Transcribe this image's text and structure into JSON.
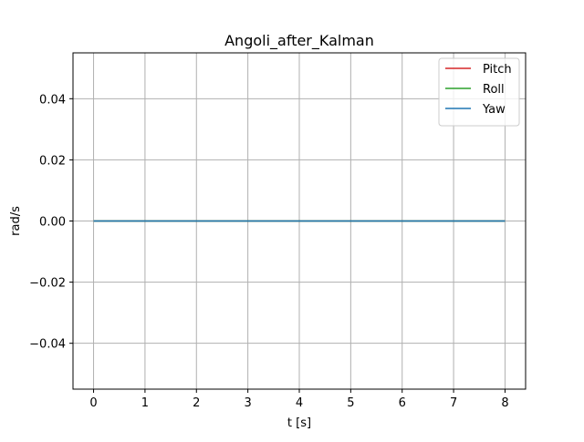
{
  "chart_data": {
    "type": "line",
    "title": "Angoli_after_Kalman",
    "xlabel": "t [s]",
    "ylabel": "rad/s",
    "xlim": [
      -0.4,
      8.4
    ],
    "ylim": [
      -0.055,
      0.055
    ],
    "x_ticks": [
      0,
      1,
      2,
      3,
      4,
      5,
      6,
      7,
      8
    ],
    "x_tick_labels": [
      "0",
      "1",
      "2",
      "3",
      "4",
      "5",
      "6",
      "7",
      "8"
    ],
    "y_ticks": [
      -0.04,
      -0.02,
      0.0,
      0.02,
      0.04
    ],
    "y_tick_labels": [
      "−0.04",
      "−0.02",
      "0.00",
      "0.02",
      "0.04"
    ],
    "grid": true,
    "legend_position": "top-right",
    "series": [
      {
        "name": "Pitch",
        "color": "#d62728",
        "x": [
          0,
          8
        ],
        "y": [
          0,
          0
        ]
      },
      {
        "name": "Roll",
        "color": "#2ca02c",
        "x": [
          0,
          8
        ],
        "y": [
          0,
          0
        ]
      },
      {
        "name": "Yaw",
        "color": "#1f77b4",
        "x": [
          0,
          8
        ],
        "y": [
          0,
          0
        ]
      }
    ]
  }
}
